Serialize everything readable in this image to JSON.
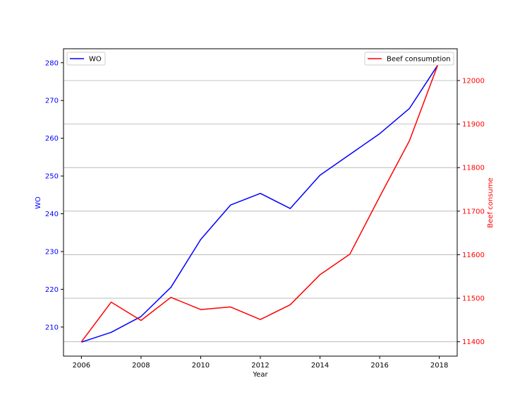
{
  "chart_data": {
    "type": "line",
    "x": [
      2006,
      2007,
      2008,
      2009,
      2010,
      2011,
      2012,
      2013,
      2014,
      2015,
      2016,
      2017,
      2018
    ],
    "xlabel": "Year",
    "xlim": [
      2005.4,
      2018.6
    ],
    "xticks": [
      2006,
      2008,
      2010,
      2012,
      2014,
      2016,
      2018
    ],
    "left_axis": {
      "label": "WO",
      "color": "#0000ff",
      "ylim": [
        202.3,
        283.7
      ],
      "ticks": [
        210,
        220,
        230,
        240,
        250,
        260,
        270,
        280
      ]
    },
    "right_axis": {
      "label": "Beef consume",
      "color": "#ff0000",
      "ylim": [
        11367,
        12073
      ],
      "ticks": [
        11400,
        11500,
        11600,
        11700,
        11800,
        11900,
        12000
      ]
    },
    "grid": "horizontal-right-axis",
    "series": [
      {
        "name": "WO",
        "axis": "left",
        "color": "#0000ff",
        "legend_position": "top-left",
        "values": [
          206.0,
          208.6,
          212.8,
          220.5,
          233.2,
          242.3,
          245.4,
          241.4,
          250.2,
          255.7,
          261.2,
          267.9,
          280.0
        ]
      },
      {
        "name": "Beef consumption",
        "axis": "right",
        "color": "#ff0000",
        "legend_position": "top-right",
        "values": [
          11400,
          11491,
          11449,
          11502,
          11474,
          11480,
          11451,
          11485,
          11554,
          11601,
          11733,
          11862,
          12045
        ]
      }
    ]
  }
}
